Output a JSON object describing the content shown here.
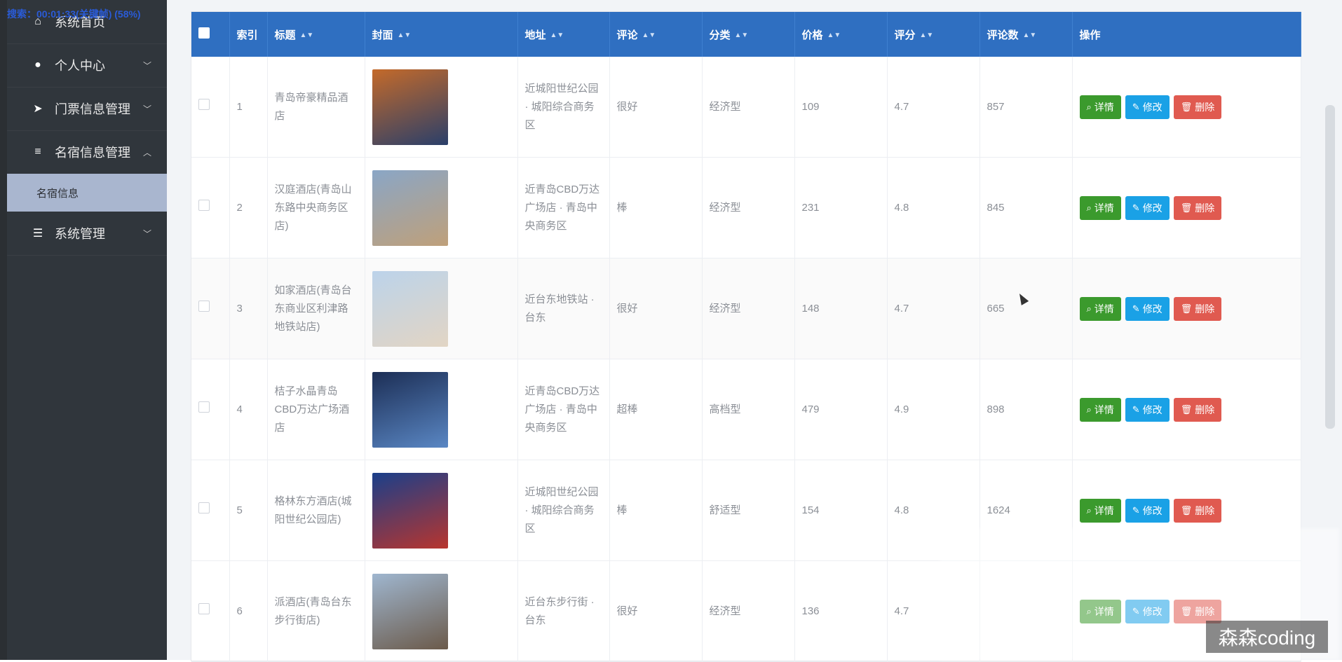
{
  "overlay": {
    "text": "搜索：00:01:33(关键帧) (58%)"
  },
  "sidebar": {
    "items": [
      {
        "label": "系统首页",
        "icon": "home-icon"
      },
      {
        "label": "个人中心",
        "icon": "user-icon"
      },
      {
        "label": "门票信息管理",
        "icon": "send-icon"
      },
      {
        "label": "名宿信息管理",
        "icon": "list-icon"
      },
      {
        "label": "系统管理",
        "icon": "sliders-icon"
      }
    ],
    "subitem": {
      "label": "名宿信息"
    }
  },
  "table": {
    "headers": {
      "index": "索引",
      "title": "标题",
      "cover": "封面",
      "address": "地址",
      "review": "评论",
      "category": "分类",
      "price": "价格",
      "score": "评分",
      "review_count": "评论数",
      "ops": "操作"
    },
    "buttons": {
      "detail": "详情",
      "edit": "修改",
      "delete": "删除"
    },
    "rows": [
      {
        "index": "1",
        "title": "青岛帝豪精品酒店",
        "address": "近城阳世纪公园 · 城阳综合商务区",
        "review": "很好",
        "category": "经济型",
        "price": "109",
        "score": "4.7",
        "review_count": "857",
        "cover_colors": [
          "#c46a2a",
          "#2a3f6a"
        ]
      },
      {
        "index": "2",
        "title": "汉庭酒店(青岛山东路中央商务区店)",
        "address": "近青岛CBD万达广场店 · 青岛中央商务区",
        "review": "棒",
        "category": "经济型",
        "price": "231",
        "score": "4.8",
        "review_count": "845",
        "cover_colors": [
          "#8aa6c6",
          "#bfa07a"
        ]
      },
      {
        "index": "3",
        "title": "如家酒店(青岛台东商业区利津路地铁站店)",
        "address": "近台东地铁站 · 台东",
        "review": "很好",
        "category": "经济型",
        "price": "148",
        "score": "4.7",
        "review_count": "665",
        "cover_colors": [
          "#bcd3ea",
          "#e2d5c4"
        ]
      },
      {
        "index": "4",
        "title": "桔子水晶青岛CBD万达广场酒店",
        "address": "近青岛CBD万达广场店 · 青岛中央商务区",
        "review": "超棒",
        "category": "高档型",
        "price": "479",
        "score": "4.9",
        "review_count": "898",
        "cover_colors": [
          "#1c2e55",
          "#5a87c4"
        ]
      },
      {
        "index": "5",
        "title": "格林东方酒店(城阳世纪公园店)",
        "address": "近城阳世纪公园 · 城阳综合商务区",
        "review": "棒",
        "category": "舒适型",
        "price": "154",
        "score": "4.8",
        "review_count": "1624",
        "cover_colors": [
          "#1a3f8a",
          "#b8352e"
        ]
      },
      {
        "index": "6",
        "title": "派酒店(青岛台东步行街店)",
        "address": "近台东步行街 · 台东",
        "review": "很好",
        "category": "经济型",
        "price": "136",
        "score": "4.7",
        "review_count": "",
        "cover_colors": [
          "#9fb6cf",
          "#6b5a4a"
        ]
      }
    ]
  },
  "watermark": {
    "text": "森森coding"
  }
}
